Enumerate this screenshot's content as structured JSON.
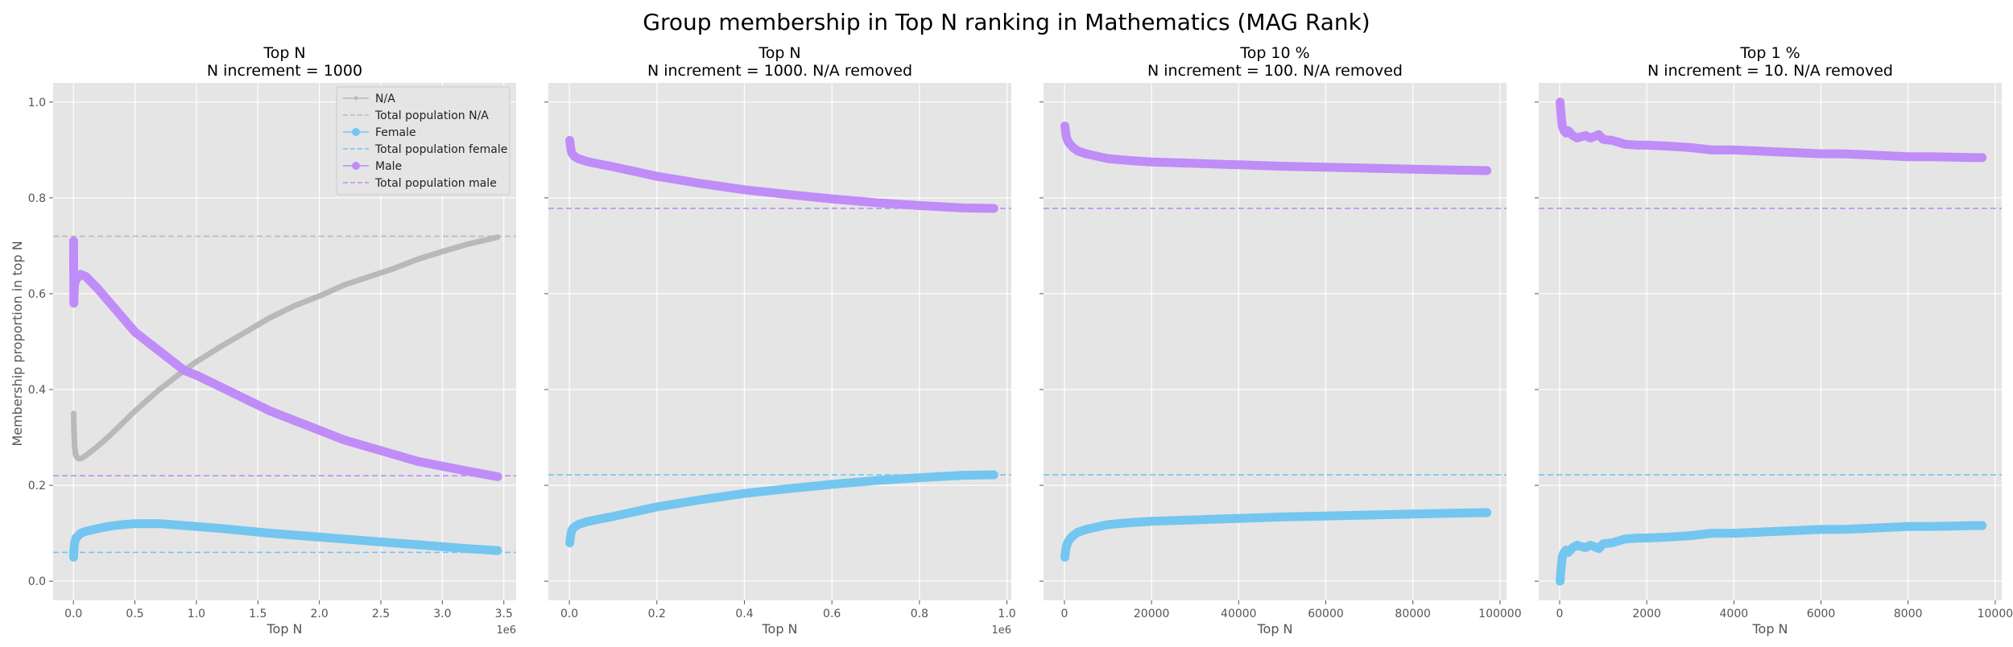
{
  "figure_title": "Group membership in Top N ranking in Mathematics (MAG Rank)",
  "colors": {
    "na": "#b9b9b9",
    "female": "#73c6f0",
    "male": "#c08cf8",
    "panel_bg": "#e5e5e5",
    "grid": "#ffffff",
    "tick": "#555555"
  },
  "shared_y": {
    "label": "Membership proportion in top N",
    "lim": [
      -0.04,
      1.04
    ],
    "ticks": [
      0.0,
      0.2,
      0.4,
      0.6,
      0.8,
      1.0
    ],
    "tick_labels": [
      "0.0",
      "0.2",
      "0.4",
      "0.6",
      "0.8",
      "1.0"
    ]
  },
  "legend": {
    "placement": "top-right",
    "entries": [
      {
        "label": "N/A",
        "color": "#b9b9b9",
        "style": "marker-line"
      },
      {
        "label": "Total population N/A",
        "color": "#b9b9b9",
        "style": "dashed"
      },
      {
        "label": "Female",
        "color": "#73c6f0",
        "style": "marker-line"
      },
      {
        "label": "Total population female",
        "color": "#73c6f0",
        "style": "dashed"
      },
      {
        "label": "Male",
        "color": "#c08cf8",
        "style": "marker-line"
      },
      {
        "label": "Total population male",
        "color": "#c08cf8",
        "style": "dashed"
      }
    ]
  },
  "chart_data": [
    {
      "type": "line",
      "title": "Top N",
      "subtitle": "N increment = 1000",
      "xlabel": "Top N",
      "ylabel": "Membership proportion in top N",
      "xlim": [
        -165000,
        3600000
      ],
      "x_ticks": [
        0,
        500000,
        1000000,
        1500000,
        2000000,
        2500000,
        3000000,
        3500000
      ],
      "x_tick_labels": [
        "0.0",
        "0.5",
        "1.0",
        "1.5",
        "2.0",
        "2.5",
        "3.0",
        "3.5"
      ],
      "x_offset_label": "1e6",
      "has_ylabel": true,
      "show_legend": true,
      "series": [
        {
          "name": "N/A",
          "key": "na",
          "x": [
            1000,
            5000,
            10000,
            20000,
            40000,
            60000,
            100000,
            200000,
            300000,
            400000,
            500000,
            600000,
            700000,
            800000,
            900000,
            1000000,
            1200000,
            1400000,
            1600000,
            1800000,
            2000000,
            2200000,
            2400000,
            2600000,
            2800000,
            3000000,
            3200000,
            3450000
          ],
          "y": [
            0.35,
            0.31,
            0.28,
            0.262,
            0.256,
            0.256,
            0.262,
            0.282,
            0.305,
            0.33,
            0.355,
            0.378,
            0.4,
            0.42,
            0.44,
            0.458,
            0.49,
            0.52,
            0.55,
            0.575,
            0.595,
            0.618,
            0.635,
            0.652,
            0.672,
            0.688,
            0.703,
            0.718
          ]
        },
        {
          "name": "Female",
          "key": "female",
          "x": [
            1000,
            5000,
            10000,
            20000,
            40000,
            60000,
            100000,
            200000,
            300000,
            400000,
            500000,
            600000,
            700000,
            800000,
            1000000,
            1200000,
            1400000,
            1600000,
            1800000,
            2000000,
            2200000,
            2400000,
            2600000,
            2800000,
            3000000,
            3200000,
            3450000
          ],
          "y": [
            0.05,
            0.07,
            0.08,
            0.09,
            0.095,
            0.1,
            0.104,
            0.11,
            0.115,
            0.118,
            0.12,
            0.12,
            0.12,
            0.118,
            0.114,
            0.11,
            0.105,
            0.1,
            0.096,
            0.092,
            0.088,
            0.084,
            0.08,
            0.076,
            0.072,
            0.068,
            0.064
          ]
        },
        {
          "name": "Male",
          "key": "male",
          "x": [
            1000,
            3000,
            5000,
            10000,
            20000,
            40000,
            60000,
            100000,
            200000,
            300000,
            400000,
            500000,
            600000,
            700000,
            800000,
            900000,
            1000000,
            1200000,
            1400000,
            1600000,
            1800000,
            2000000,
            2200000,
            2400000,
            2600000,
            2800000,
            3000000,
            3200000,
            3450000
          ],
          "y": [
            0.71,
            0.58,
            0.6,
            0.62,
            0.63,
            0.635,
            0.64,
            0.636,
            0.61,
            0.58,
            0.55,
            0.52,
            0.5,
            0.48,
            0.46,
            0.44,
            0.43,
            0.405,
            0.38,
            0.355,
            0.335,
            0.315,
            0.295,
            0.28,
            0.265,
            0.25,
            0.24,
            0.23,
            0.218
          ]
        }
      ],
      "reference_lines": [
        {
          "name": "Total population N/A",
          "key": "na",
          "y": 0.72
        },
        {
          "name": "Total population female",
          "key": "female",
          "y": 0.06
        },
        {
          "name": "Total population male",
          "key": "male",
          "y": 0.22
        }
      ]
    },
    {
      "type": "line",
      "title": "Top N",
      "subtitle": "N increment = 1000. N/A removed",
      "xlabel": "Top N",
      "xlim": [
        -48000,
        1010000
      ],
      "x_ticks": [
        0,
        200000,
        400000,
        600000,
        800000,
        1000000
      ],
      "x_tick_labels": [
        "0.0",
        "0.2",
        "0.4",
        "0.6",
        "0.8",
        "1.0"
      ],
      "x_offset_label": "1e6",
      "has_ylabel": false,
      "show_legend": false,
      "series": [
        {
          "name": "Female",
          "key": "female",
          "x": [
            1000,
            3000,
            5000,
            10000,
            20000,
            40000,
            60000,
            100000,
            150000,
            200000,
            300000,
            400000,
            500000,
            600000,
            700000,
            800000,
            900000,
            970000
          ],
          "y": [
            0.08,
            0.095,
            0.105,
            0.112,
            0.118,
            0.124,
            0.128,
            0.135,
            0.145,
            0.155,
            0.17,
            0.183,
            0.193,
            0.202,
            0.21,
            0.216,
            0.221,
            0.222
          ]
        },
        {
          "name": "Male",
          "key": "male",
          "x": [
            1000,
            3000,
            5000,
            10000,
            20000,
            40000,
            60000,
            100000,
            150000,
            200000,
            300000,
            400000,
            500000,
            600000,
            700000,
            800000,
            900000,
            970000
          ],
          "y": [
            0.92,
            0.905,
            0.895,
            0.888,
            0.882,
            0.876,
            0.872,
            0.865,
            0.855,
            0.845,
            0.83,
            0.817,
            0.807,
            0.798,
            0.79,
            0.784,
            0.779,
            0.778
          ]
        }
      ],
      "reference_lines": [
        {
          "name": "Total population female",
          "key": "female",
          "y": 0.222
        },
        {
          "name": "Total population male",
          "key": "male",
          "y": 0.778
        }
      ]
    },
    {
      "type": "line",
      "title": "Top 10 %",
      "subtitle": "N increment = 100. N/A removed",
      "xlabel": "Top N",
      "xlim": [
        -4800,
        101500
      ],
      "x_ticks": [
        0,
        20000,
        40000,
        60000,
        80000,
        100000
      ],
      "x_tick_labels": [
        "0",
        "20000",
        "40000",
        "60000",
        "80000",
        "100000"
      ],
      "x_offset_label": "",
      "has_ylabel": false,
      "show_legend": false,
      "series": [
        {
          "name": "Female",
          "key": "female",
          "x": [
            100,
            300,
            500,
            1000,
            2000,
            3000,
            5000,
            8000,
            10000,
            15000,
            20000,
            30000,
            40000,
            50000,
            60000,
            70000,
            80000,
            90000,
            97000
          ],
          "y": [
            0.05,
            0.065,
            0.075,
            0.085,
            0.095,
            0.102,
            0.108,
            0.114,
            0.118,
            0.122,
            0.125,
            0.128,
            0.131,
            0.134,
            0.136,
            0.138,
            0.14,
            0.142,
            0.143
          ]
        },
        {
          "name": "Male",
          "key": "male",
          "x": [
            100,
            300,
            500,
            1000,
            2000,
            3000,
            5000,
            8000,
            10000,
            15000,
            20000,
            30000,
            40000,
            50000,
            60000,
            70000,
            80000,
            90000,
            97000
          ],
          "y": [
            0.95,
            0.935,
            0.925,
            0.915,
            0.905,
            0.898,
            0.892,
            0.886,
            0.882,
            0.878,
            0.875,
            0.872,
            0.869,
            0.866,
            0.864,
            0.862,
            0.86,
            0.858,
            0.857
          ]
        }
      ],
      "reference_lines": [
        {
          "name": "Total population female",
          "key": "female",
          "y": 0.222
        },
        {
          "name": "Total population male",
          "key": "male",
          "y": 0.778
        }
      ]
    },
    {
      "type": "line",
      "title": "Top 1 %",
      "subtitle": "N increment = 10. N/A removed",
      "xlabel": "Top N",
      "xlim": [
        -480,
        10150
      ],
      "x_ticks": [
        0,
        2000,
        4000,
        6000,
        8000,
        10000
      ],
      "x_tick_labels": [
        "0",
        "2000",
        "4000",
        "6000",
        "8000",
        "10000"
      ],
      "x_offset_label": "",
      "has_ylabel": false,
      "show_legend": false,
      "series": [
        {
          "name": "Female",
          "key": "female",
          "x": [
            10,
            30,
            60,
            100,
            150,
            200,
            300,
            400,
            500,
            600,
            700,
            800,
            900,
            1000,
            1200,
            1500,
            1800,
            2000,
            2500,
            3000,
            3500,
            4000,
            4500,
            5000,
            5500,
            6000,
            6500,
            7000,
            7500,
            8000,
            8500,
            9000,
            9500,
            9700
          ],
          "y": [
            0.0,
            0.025,
            0.05,
            0.06,
            0.065,
            0.06,
            0.07,
            0.075,
            0.072,
            0.07,
            0.075,
            0.072,
            0.068,
            0.078,
            0.08,
            0.088,
            0.09,
            0.09,
            0.092,
            0.095,
            0.1,
            0.1,
            0.102,
            0.104,
            0.106,
            0.108,
            0.108,
            0.11,
            0.112,
            0.114,
            0.114,
            0.115,
            0.116,
            0.116
          ]
        },
        {
          "name": "Male",
          "key": "male",
          "x": [
            10,
            30,
            60,
            100,
            150,
            200,
            300,
            400,
            500,
            600,
            700,
            800,
            900,
            1000,
            1200,
            1500,
            1800,
            2000,
            2500,
            3000,
            3500,
            4000,
            4500,
            5000,
            5500,
            6000,
            6500,
            7000,
            7500,
            8000,
            8500,
            9000,
            9500,
            9700
          ],
          "y": [
            1.0,
            0.975,
            0.95,
            0.94,
            0.935,
            0.94,
            0.93,
            0.925,
            0.928,
            0.93,
            0.925,
            0.928,
            0.932,
            0.922,
            0.92,
            0.912,
            0.91,
            0.91,
            0.908,
            0.905,
            0.9,
            0.9,
            0.898,
            0.896,
            0.894,
            0.892,
            0.892,
            0.89,
            0.888,
            0.886,
            0.886,
            0.885,
            0.884,
            0.884
          ]
        }
      ],
      "reference_lines": [
        {
          "name": "Total population female",
          "key": "female",
          "y": 0.222
        },
        {
          "name": "Total population male",
          "key": "male",
          "y": 0.778
        }
      ]
    }
  ]
}
